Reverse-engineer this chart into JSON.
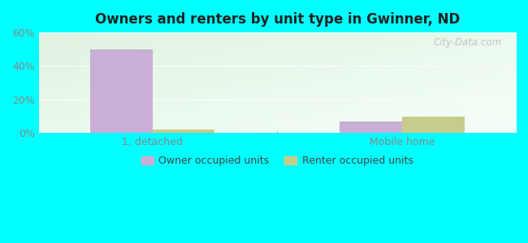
{
  "title": "Owners and renters by unit type in Gwinner, ND",
  "categories": [
    "1, detached",
    "Mobile home"
  ],
  "owner_values": [
    50,
    7
  ],
  "renter_values": [
    2,
    10
  ],
  "owner_color": "#c9aed6",
  "renter_color": "#c8cc8a",
  "ylim": [
    0,
    60
  ],
  "yticks": [
    0,
    20,
    40,
    60
  ],
  "ytick_labels": [
    "0%",
    "20%",
    "40%",
    "60%"
  ],
  "outer_bg": "#00ffff",
  "watermark": "City-Data.com",
  "legend_labels": [
    "Owner occupied units",
    "Renter occupied units"
  ],
  "bar_width": 0.55,
  "group_positions": [
    1.0,
    3.2
  ],
  "xlim": [
    0,
    4.2
  ]
}
